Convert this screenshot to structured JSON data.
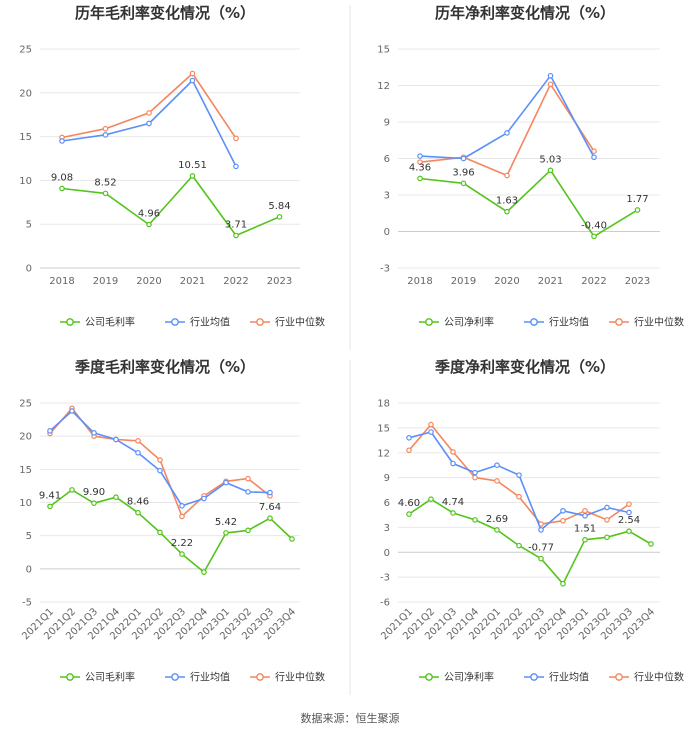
{
  "source": "数据来源：恒生聚源",
  "colors": {
    "company": "#52c41a",
    "avg": "#5b8ff9",
    "median": "#f4865f",
    "grid": "#e8e8e8",
    "axis": "#cccccc",
    "divider": "#e6e6e6"
  },
  "chart_data": [
    {
      "type": "line",
      "title": "历年毛利率变化情况（%）",
      "categories": [
        "2018",
        "2019",
        "2020",
        "2021",
        "2022",
        "2023"
      ],
      "ylim": [
        0,
        25
      ],
      "yticks": [
        0,
        5,
        10,
        15,
        20,
        25
      ],
      "rotate_x": false,
      "series": [
        {
          "key": "company",
          "name": "公司毛利率",
          "values": [
            9.08,
            8.52,
            4.96,
            10.51,
            3.71,
            5.84
          ],
          "labels": [
            "9.08",
            "8.52",
            "4.96",
            "10.51",
            "3.71",
            "5.84"
          ]
        },
        {
          "key": "avg",
          "name": "行业均值",
          "values": [
            14.5,
            15.2,
            16.5,
            21.4,
            11.6,
            null
          ]
        },
        {
          "key": "median",
          "name": "行业中位数",
          "values": [
            14.9,
            15.9,
            17.7,
            22.2,
            14.8,
            null
          ]
        }
      ]
    },
    {
      "type": "line",
      "title": "历年净利率变化情况（%）",
      "categories": [
        "2018",
        "2019",
        "2020",
        "2021",
        "2022",
        "2023"
      ],
      "ylim": [
        -3,
        15
      ],
      "yticks": [
        -3,
        0,
        3,
        6,
        9,
        12,
        15
      ],
      "rotate_x": false,
      "series": [
        {
          "key": "company",
          "name": "公司净利率",
          "values": [
            4.36,
            3.96,
            1.63,
            5.03,
            -0.4,
            1.77
          ],
          "labels": [
            "4.36",
            "3.96",
            "1.63",
            "5.03",
            "-0.40",
            "1.77"
          ]
        },
        {
          "key": "avg",
          "name": "行业均值",
          "values": [
            6.2,
            6.0,
            8.1,
            12.8,
            6.1,
            null
          ]
        },
        {
          "key": "median",
          "name": "行业中位数",
          "values": [
            5.7,
            6.1,
            4.6,
            12.1,
            6.6,
            null
          ]
        }
      ]
    },
    {
      "type": "line",
      "title": "季度毛利率变化情况（%）",
      "categories": [
        "2021Q1",
        "2021Q2",
        "2021Q3",
        "2021Q4",
        "2022Q1",
        "2022Q2",
        "2022Q3",
        "2022Q4",
        "2023Q1",
        "2023Q2",
        "2023Q3",
        "2023Q4"
      ],
      "ylim": [
        -5,
        25
      ],
      "yticks": [
        -5,
        0,
        5,
        10,
        15,
        20,
        25
      ],
      "rotate_x": true,
      "series": [
        {
          "key": "company",
          "name": "公司毛利率",
          "values": [
            9.41,
            11.9,
            9.9,
            10.8,
            8.46,
            5.5,
            2.22,
            -0.5,
            5.42,
            5.8,
            7.64,
            4.5
          ],
          "labels": [
            "9.41",
            null,
            "9.90",
            null,
            "8.46",
            null,
            "2.22",
            null,
            "5.42",
            null,
            "7.64",
            null
          ]
        },
        {
          "key": "avg",
          "name": "行业均值",
          "values": [
            20.8,
            23.8,
            20.5,
            19.5,
            17.5,
            14.8,
            9.5,
            10.6,
            13.0,
            11.6,
            11.5,
            null
          ]
        },
        {
          "key": "median",
          "name": "行业中位数",
          "values": [
            20.4,
            24.2,
            20.0,
            19.5,
            19.3,
            16.4,
            7.9,
            11.0,
            13.2,
            13.6,
            11.0,
            null
          ]
        }
      ]
    },
    {
      "type": "line",
      "title": "季度净利率变化情况（%）",
      "categories": [
        "2021Q1",
        "2021Q2",
        "2021Q3",
        "2021Q4",
        "2022Q1",
        "2022Q2",
        "2022Q3",
        "2022Q4",
        "2023Q1",
        "2023Q2",
        "2023Q3",
        "2023Q4"
      ],
      "ylim": [
        -6,
        18
      ],
      "yticks": [
        -6,
        -3,
        0,
        3,
        6,
        9,
        12,
        15,
        18
      ],
      "rotate_x": true,
      "series": [
        {
          "key": "company",
          "name": "公司净利率",
          "values": [
            4.6,
            6.4,
            4.74,
            3.9,
            2.69,
            0.8,
            -0.77,
            -3.8,
            1.51,
            1.8,
            2.54,
            1.0
          ],
          "labels": [
            "4.60",
            null,
            "4.74",
            null,
            "2.69",
            null,
            "-0.77",
            null,
            "1.51",
            null,
            "2.54",
            null
          ]
        },
        {
          "key": "avg",
          "name": "行业均值",
          "values": [
            13.8,
            14.5,
            10.7,
            9.6,
            10.5,
            9.3,
            2.7,
            5.0,
            4.4,
            5.4,
            4.8,
            null
          ]
        },
        {
          "key": "median",
          "name": "行业中位数",
          "values": [
            12.3,
            15.4,
            12.1,
            9.0,
            8.6,
            6.7,
            3.4,
            3.8,
            5.0,
            3.9,
            5.8,
            null
          ]
        }
      ]
    }
  ]
}
